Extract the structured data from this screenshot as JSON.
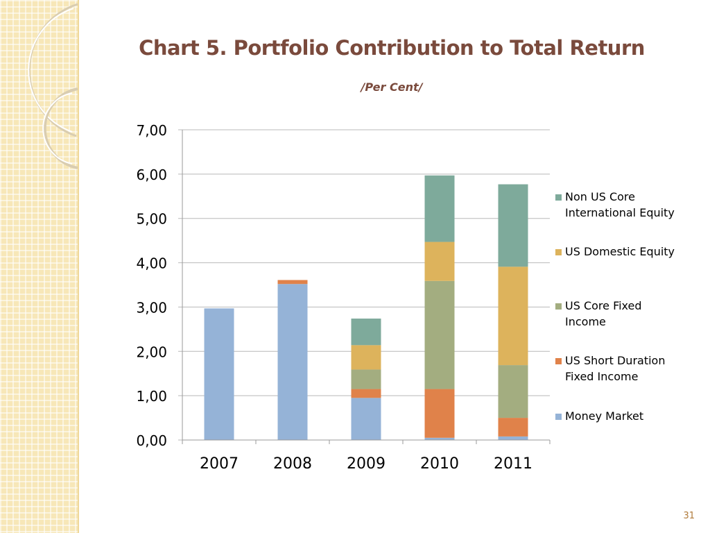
{
  "slide": {
    "title": "Chart 5. Portfolio Contribution to Total Return",
    "subtitle": "/Per Cent/",
    "page_number": "31"
  },
  "colors": {
    "title": "#7a4a3c",
    "Money Market": "#95b3d7",
    "US Short Duration Fixed Income": "#e0824a",
    "US Core Fixed Income": "#a3ad80",
    "US Domestic Equity": "#ddb35c",
    "Non US Core International Equity": "#7eaa9b"
  },
  "chart_data": {
    "type": "bar",
    "stacked": true,
    "categories": [
      "2007",
      "2008",
      "2009",
      "2010",
      "2011"
    ],
    "ylim": [
      0,
      7
    ],
    "y_ticks": [
      "0,00",
      "1,00",
      "2,00",
      "3,00",
      "4,00",
      "5,00",
      "6,00",
      "7,00"
    ],
    "grid": true,
    "legend_position": "right",
    "series": [
      {
        "name": "Money Market",
        "values": [
          2.97,
          3.52,
          0.95,
          0.05,
          0.08
        ]
      },
      {
        "name": "US Short Duration Fixed Income",
        "values": [
          0,
          0.09,
          0.2,
          1.1,
          0.42
        ]
      },
      {
        "name": "US Core Fixed Income",
        "values": [
          0,
          0,
          0.44,
          2.44,
          1.19
        ]
      },
      {
        "name": "US Domestic Equity",
        "values": [
          0,
          0,
          0.55,
          0.88,
          2.22
        ]
      },
      {
        "name": "Non US Core International Equity",
        "values": [
          0,
          0,
          0.6,
          1.5,
          1.86
        ]
      }
    ],
    "legend": [
      {
        "series": "Non US Core International Equity",
        "lines": [
          "Non US Core",
          "International Equity"
        ]
      },
      {
        "series": "US Domestic Equity",
        "lines": [
          "US Domestic Equity"
        ]
      },
      {
        "series": "US Core Fixed Income",
        "lines": [
          "US Core Fixed",
          "Income"
        ]
      },
      {
        "series": "US Short Duration Fixed Income",
        "lines": [
          "US Short Duration",
          "Fixed Income"
        ]
      },
      {
        "series": "Money Market",
        "lines": [
          "Money Market"
        ]
      }
    ]
  }
}
